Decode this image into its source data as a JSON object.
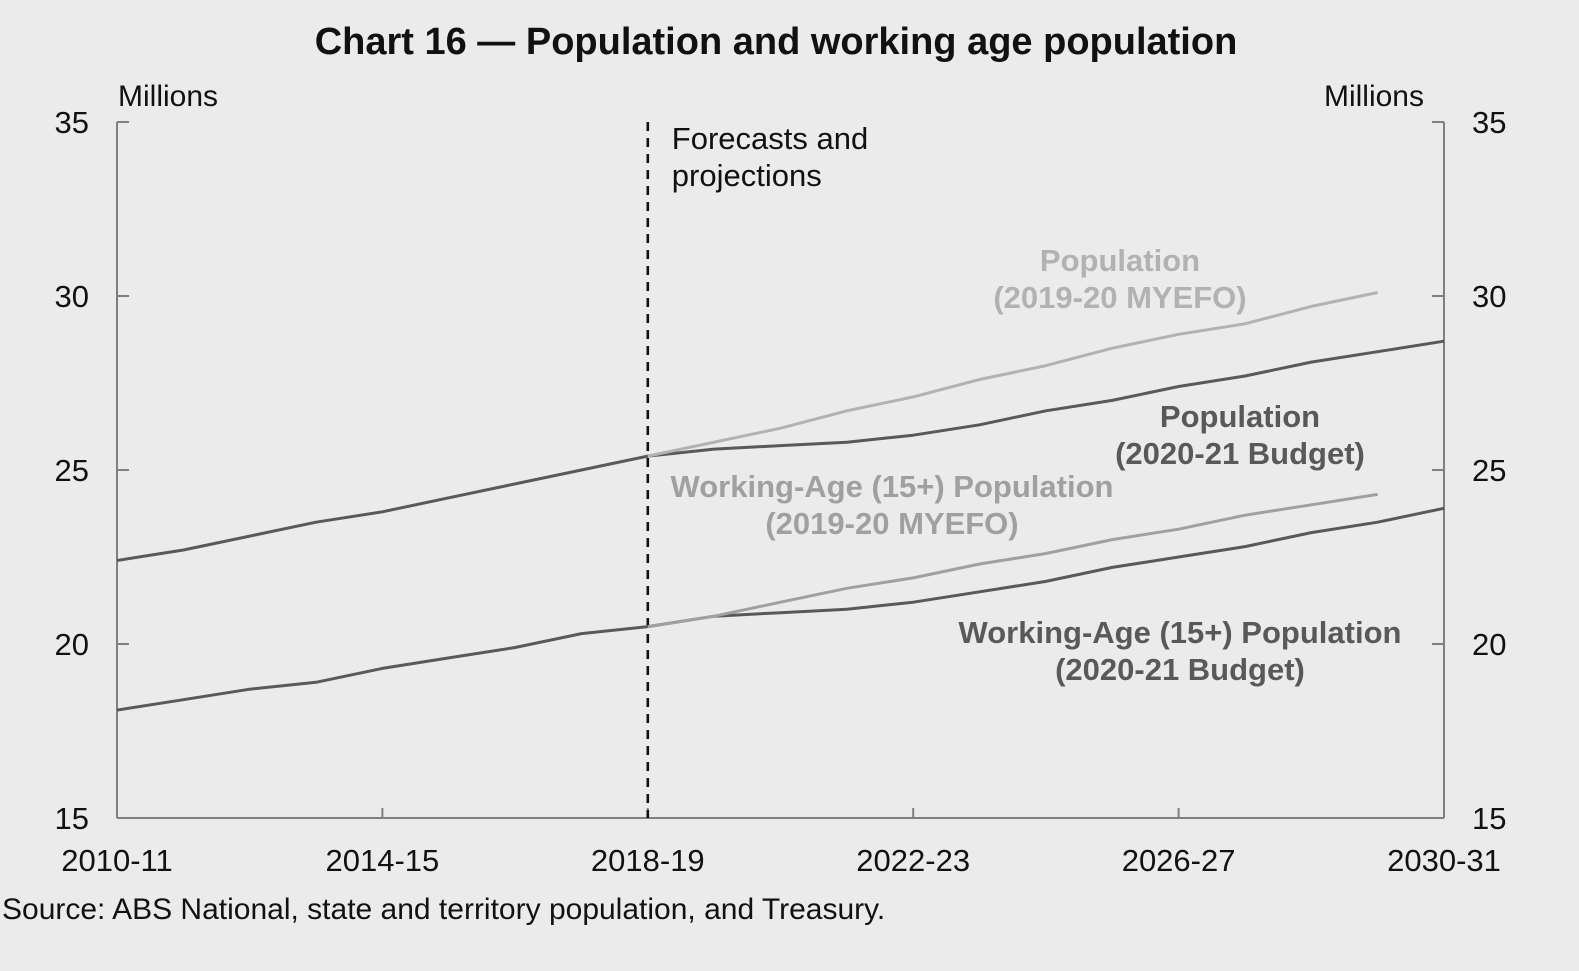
{
  "chart_data": {
    "type": "line",
    "title": "Chart 16 — Population and working age population",
    "y_unit_left": "Millions",
    "y_unit_right": "Millions",
    "ylim": [
      15,
      35
    ],
    "y_ticks": [
      "35",
      "30",
      "25",
      "20",
      "15"
    ],
    "x_tick_labels": [
      "2010-11",
      "2014-15",
      "2018-19",
      "2022-23",
      "2026-27",
      "2030-31"
    ],
    "x_tick_years": [
      2010,
      2014,
      2018,
      2022,
      2026,
      2030
    ],
    "xlim": [
      2010,
      2030
    ],
    "forecast_start": 2018,
    "forecast_label": [
      "Forecasts and",
      "projections"
    ],
    "source": "Source: ABS National, state and territory population, and Treasury.",
    "colors": {
      "budget": "#595959",
      "myefo": "#b2b2b2",
      "myefo_working": "#a0a0a0",
      "axis": "#7f7f7f",
      "background": "#ebebeb"
    },
    "series": [
      {
        "label_lines": [
          "Population",
          "(2020-21 Budget)"
        ],
        "style": "budget",
        "x": [
          2010,
          2011,
          2012,
          2013,
          2014,
          2015,
          2016,
          2017,
          2018,
          2019,
          2020,
          2021,
          2022,
          2023,
          2024,
          2025,
          2026,
          2027,
          2028,
          2029,
          2030
        ],
        "y": [
          22.4,
          22.7,
          23.1,
          23.5,
          23.8,
          24.2,
          24.6,
          25.0,
          25.4,
          25.6,
          25.7,
          25.8,
          26.0,
          26.3,
          26.7,
          27.0,
          27.4,
          27.7,
          28.1,
          28.4,
          28.7
        ]
      },
      {
        "label_lines": [
          "Population",
          "(2019-20 MYEFO)"
        ],
        "style": "myefo",
        "x": [
          2018,
          2019,
          2020,
          2021,
          2022,
          2023,
          2024,
          2025,
          2026,
          2027,
          2028,
          2029
        ],
        "y": [
          25.4,
          25.8,
          26.2,
          26.7,
          27.1,
          27.6,
          28.0,
          28.5,
          28.9,
          29.2,
          29.7,
          30.1
        ]
      },
      {
        "label_lines": [
          "Working-Age (15+) Population",
          "(2020-21 Budget)"
        ],
        "style": "budget",
        "x": [
          2010,
          2011,
          2012,
          2013,
          2014,
          2015,
          2016,
          2017,
          2018,
          2019,
          2020,
          2021,
          2022,
          2023,
          2024,
          2025,
          2026,
          2027,
          2028,
          2029,
          2030
        ],
        "y": [
          18.1,
          18.4,
          18.7,
          18.9,
          19.3,
          19.6,
          19.9,
          20.3,
          20.5,
          20.8,
          20.9,
          21.0,
          21.2,
          21.5,
          21.8,
          22.2,
          22.5,
          22.8,
          23.2,
          23.5,
          23.9
        ]
      },
      {
        "label_lines": [
          "Working-Age (15+) Population",
          "(2019-20 MYEFO)"
        ],
        "style": "myefo_working",
        "x": [
          2018,
          2019,
          2020,
          2021,
          2022,
          2023,
          2024,
          2025,
          2026,
          2027,
          2028,
          2029
        ],
        "y": [
          20.5,
          20.8,
          21.2,
          21.6,
          21.9,
          22.3,
          22.6,
          23.0,
          23.3,
          23.7,
          24.0,
          24.3
        ]
      }
    ]
  }
}
